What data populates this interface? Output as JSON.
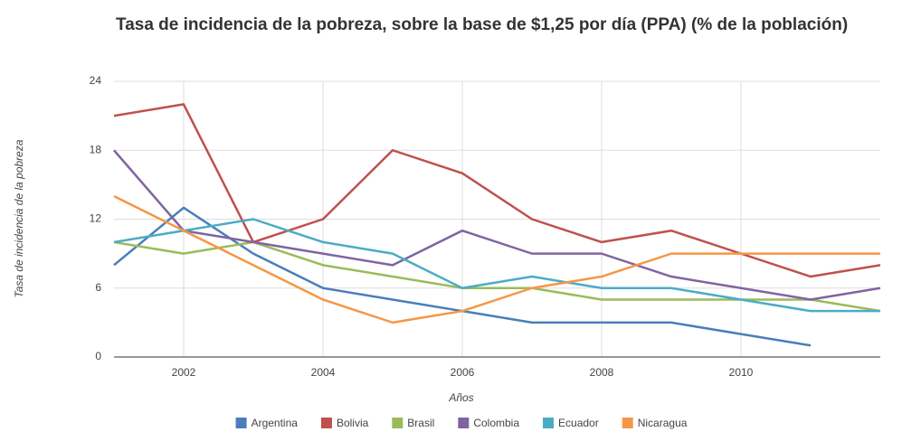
{
  "chart_data": {
    "type": "line",
    "title": "Tasa de incidencia de la pobreza, sobre la base de $1,25 por día (PPA) (% de la población)",
    "x_label": "Años",
    "y_label": "Tasa de incidencia de la pobreza",
    "x": [
      2001,
      2002,
      2003,
      2004,
      2005,
      2006,
      2007,
      2008,
      2009,
      2010,
      2011,
      2012
    ],
    "xlim": [
      2001,
      2012
    ],
    "xticks": [
      2002,
      2004,
      2006,
      2008,
      2010
    ],
    "ylim": [
      0,
      24
    ],
    "yticks": [
      0,
      6,
      12,
      18,
      24
    ],
    "grid": true,
    "legend": "bottom",
    "series": [
      {
        "name": "Argentina",
        "color": "#4a7ebb",
        "values": [
          8,
          13,
          9,
          6,
          5,
          4,
          3,
          3,
          3,
          2,
          1,
          null
        ]
      },
      {
        "name": "Bolivia",
        "color": "#c0504d",
        "values": [
          21,
          22,
          10,
          12,
          18,
          16,
          12,
          10,
          11,
          9,
          7,
          8
        ]
      },
      {
        "name": "Brasil",
        "color": "#9bbb59",
        "values": [
          10,
          9,
          10,
          8,
          7,
          6,
          6,
          5,
          5,
          5,
          5,
          4
        ]
      },
      {
        "name": "Colombia",
        "color": "#8064a2",
        "values": [
          18,
          11,
          10,
          9,
          8,
          11,
          9,
          9,
          7,
          6,
          5,
          6
        ]
      },
      {
        "name": "Ecuador",
        "color": "#4bacc6",
        "values": [
          10,
          11,
          12,
          10,
          9,
          6,
          7,
          6,
          6,
          5,
          4,
          4
        ]
      },
      {
        "name": "Nicaragua",
        "color": "#f79646",
        "values": [
          14,
          11,
          8,
          5,
          3,
          4,
          6,
          7,
          9,
          9,
          9,
          9
        ]
      }
    ]
  }
}
